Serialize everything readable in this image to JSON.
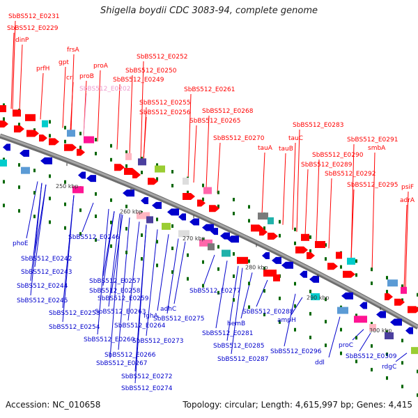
{
  "title": "Shigella boydii CDC 3083-94, complete genome",
  "footer": {
    "accession": "Accession: NC_010658",
    "summary": "Topology: circular; Length: 4,615,997 bp; Genes: 4,415"
  },
  "colors": {
    "fwd": "#ff0000",
    "rev": "#0000cc",
    "highlight": "#ee99cc",
    "backbone": "#808080",
    "tick": "#006600",
    "label_text": "#333333"
  },
  "scale_labels": [
    "250 kbp",
    "260 kbp",
    "270 kbp",
    "280 kbp",
    "290 kbp",
    "300 kbp"
  ],
  "top_labels": [
    "SbBS512_E0231",
    "SbBS512_E0229",
    "dinP",
    "prfH",
    "gpt",
    "frsA",
    "crl",
    "proA",
    "proB",
    "SbBS512_E0202",
    "SbBS512_E0252",
    "SbBS512_E0250",
    "SbBS512_E0249",
    "SbBS512_E0261",
    "SbBS512_E0255",
    "SbBS512_E0256",
    "SbBS512_E0268",
    "SbBS512_E0265",
    "SbBS512_E0270",
    "SbBS512_E0283",
    "tauA",
    "tauC",
    "tauB",
    "SbBS512_E0291",
    "smbA",
    "SbBS512_E0290",
    "SbBS512_E0289",
    "SbBS512_E0292",
    "SbBS512_E0295",
    "psiF",
    "adrA"
  ],
  "bottom_labels": [
    "phoE",
    "SbBS512_E0246",
    "SbBS512_E0242",
    "SbBS512_E0243",
    "SbBS512_E0244",
    "SbBS512_E0245",
    "SbBS512_E0257",
    "SbBS512_E0258",
    "SbBS512_E0259",
    "SbBS512_E0253",
    "SbBS512_E0254",
    "SbBS512_E0263",
    "fghA",
    "adhC",
    "SbBS512_E0277",
    "SbBS512_E0260",
    "SbBS512_E0264",
    "SbBS512_E0275",
    "SbBS512_E0266",
    "SbBS512_E0273",
    "SbBS512_E0267",
    "SbBS512_E0272",
    "SbBS512_E0274",
    "hemB",
    "SbBS512_E0281",
    "SbBS512_E0285",
    "SbBS512_E0287",
    "SbBS512_E0288",
    "ampH",
    "SbBS512_E0296",
    "ddl",
    "proC",
    "SbBS512_E0309",
    "rdgC"
  ]
}
